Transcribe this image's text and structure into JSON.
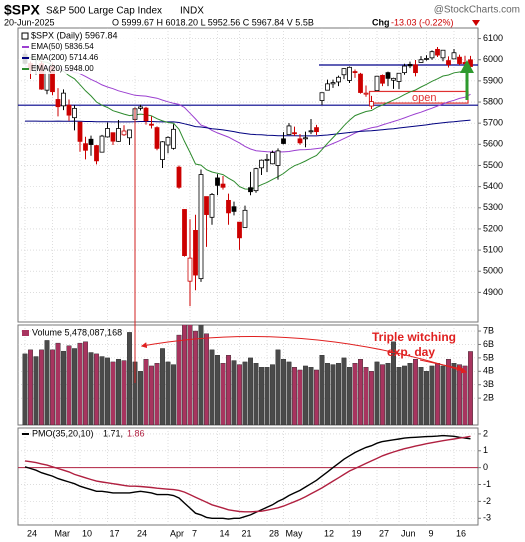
{
  "header": {
    "symbol": "$SPX",
    "name": "S&P 500 Large Cap Index",
    "exchange": "INDX",
    "credit": "@StockCharts.com",
    "date": "20-Jun-2025",
    "quote": "O 5999.67 H 6018.20 L 5952.56 C 5967.84 V 5.5B",
    "change_label": "Chg",
    "change": "-13.03 (-0.22%)"
  },
  "chart_data": [
    {
      "type": "candlestick",
      "legend": "$SPX (Daily) 5967.84",
      "colors": {
        "up": "#000000",
        "down": "#cc0000"
      },
      "categories": [
        "24",
        null,
        null,
        null,
        null,
        "Mar",
        null,
        null,
        null,
        null,
        "10",
        null,
        null,
        null,
        null,
        "17",
        null,
        null,
        null,
        null,
        "24",
        null,
        null,
        null,
        null,
        null,
        "Apr",
        null,
        null,
        null,
        "7",
        null,
        null,
        null,
        null,
        "14",
        null,
        null,
        null,
        "21",
        null,
        null,
        null,
        null,
        "28",
        null,
        null,
        "May",
        null,
        null,
        null,
        null,
        null,
        null,
        "12",
        null,
        null,
        null,
        null,
        "19",
        null,
        null,
        null,
        null,
        "27",
        null,
        null,
        null,
        "Jun",
        null,
        null,
        null,
        null,
        "9",
        null,
        null,
        null,
        null,
        "16",
        null,
        null,
        null
      ],
      "open": [
        6026,
        5982,
        5970,
        5981,
        5856,
        5969,
        5812,
        5782,
        5785,
        5726,
        5705,
        5603,
        5624,
        5594,
        5563,
        5635,
        5655,
        5614,
        5645,
        5631,
        5718,
        5770,
        5771,
        5695,
        5679,
        5528,
        5597,
        5581,
        5492,
        5292,
        4953,
        5193,
        4965,
        5353,
        5255,
        5441,
        5412,
        5335,
        5305,
        5232,
        5207,
        5395,
        5381,
        5489,
        5529,
        5508,
        5500,
        5626,
        5646,
        5655,
        5626,
        5626,
        5663,
        5679,
        5807,
        5856,
        5886,
        5895,
        5929,
        5902,
        5944,
        5932,
        5842,
        5781,
        5854,
        5926,
        5939,
        5903,
        5897,
        5939,
        5978,
        5976,
        5987,
        6005,
        6009,
        6049,
        6009,
        5996,
        6004,
        6012,
        5987,
        5999.67
      ],
      "high": [
        6044,
        5992,
        6009,
        5994,
        5959,
        5986,
        5866,
        5860,
        5812,
        5785,
        5705,
        5636,
        5641,
        5597,
        5645,
        5703,
        5656,
        5715,
        5690,
        5670,
        5775,
        5787,
        5777,
        5733,
        5685,
        5615,
        5638,
        5695,
        5500,
        5293,
        5246,
        5267,
        5481,
        5353,
        5370,
        5459,
        5450,
        5367,
        5329,
        5232,
        5310,
        5470,
        5489,
        5528,
        5554,
        5570,
        5581,
        5658,
        5700,
        5684,
        5649,
        5660,
        5720,
        5692,
        5845,
        5906,
        5906,
        5925,
        5959,
        5968,
        5954,
        5938,
        5878,
        5829,
        5924,
        5930,
        5944,
        5915,
        5937,
        5981,
        5991,
        5999,
        6017,
        6021,
        6044,
        6060,
        6046,
        6016,
        6051,
        6024,
        6019,
        6018.2
      ],
      "low": [
        5977,
        5909,
        5930,
        5858,
        5837,
        5832,
        5732,
        5762,
        5711,
        5666,
        5565,
        5529,
        5546,
        5505,
        5563,
        5632,
        5597,
        5612,
        5640,
        5597,
        5718,
        5760,
        5693,
        5675,
        5572,
        5488,
        5558,
        5575,
        5390,
        5069,
        4835,
        4910,
        4950,
        5115,
        5220,
        5360,
        5386,
        5220,
        5264,
        5101,
        5207,
        5359,
        5371,
        5455,
        5469,
        5506,
        5433,
        5600,
        5645,
        5640,
        5598,
        5586,
        5648,
        5644,
        5786,
        5855,
        5867,
        5875,
        5908,
        5890,
        5914,
        5840,
        5825,
        5767,
        5854,
        5875,
        5875,
        5862,
        5861,
        5929,
        5960,
        5921,
        5986,
        5996,
        6000,
        6013,
        5993,
        5963,
        6004,
        5975,
        5971,
        5952.56
      ],
      "close": [
        5983,
        5955,
        5956,
        5861,
        5955,
        5849,
        5778,
        5842,
        5738,
        5770,
        5614,
        5572,
        5599,
        5522,
        5639,
        5675,
        5615,
        5675,
        5663,
        5668,
        5768,
        5777,
        5712,
        5693,
        5581,
        5612,
        5633,
        5671,
        5397,
        5074,
        5062,
        4982,
        5457,
        5268,
        5363,
        5406,
        5397,
        5276,
        5283,
        5158,
        5288,
        5376,
        5485,
        5525,
        5529,
        5561,
        5569,
        5604,
        5687,
        5650,
        5607,
        5631,
        5664,
        5660,
        5844,
        5886,
        5892,
        5917,
        5958,
        5964,
        5941,
        5845,
        5842,
        5802,
        5922,
        5889,
        5912,
        5912,
        5936,
        5970,
        5971,
        5939,
        6000,
        6006,
        6038,
        6022,
        6045,
        5977,
        6033,
        5982,
        5981,
        5967.84
      ],
      "series": [
        {
          "name": "EMA(50) 5836.54",
          "color": "#9b3fd0",
          "values": [
            5970,
            5970,
            5969,
            5969,
            5965,
            5964,
            5960,
            5953,
            5948,
            5940,
            5934,
            5921,
            5907,
            5895,
            5881,
            5871,
            5863,
            5853,
            5846,
            5839,
            5832,
            5830,
            5828,
            5823,
            5818,
            5809,
            5801,
            5794,
            5789,
            5774,
            5747,
            5720,
            5691,
            5682,
            5666,
            5654,
            5644,
            5634,
            5620,
            5607,
            5590,
            5578,
            5570,
            5567,
            5565,
            5564,
            5564,
            5564,
            5566,
            5571,
            5574,
            5575,
            5577,
            5580,
            5583,
            5593,
            5604,
            5615,
            5627,
            5640,
            5653,
            5664,
            5671,
            5678,
            5683,
            5692,
            5700,
            5708,
            5716,
            5725,
            5735,
            5744,
            5752,
            5762,
            5771,
            5781,
            5791,
            5801,
            5808,
            5817,
            5823,
            5836.54
          ]
        },
        {
          "name": "EMA(200) 5714.46",
          "color": "#000080",
          "values": [
            5710,
            5710,
            5710,
            5709,
            5709,
            5709,
            5710,
            5709,
            5709,
            5710,
            5709,
            5708,
            5708,
            5707,
            5707,
            5707,
            5706,
            5706,
            5706,
            5706,
            5707,
            5708,
            5708,
            5708,
            5707,
            5706,
            5706,
            5706,
            5703,
            5697,
            5691,
            5684,
            5682,
            5678,
            5674,
            5671,
            5668,
            5664,
            5660,
            5655,
            5651,
            5648,
            5646,
            5645,
            5643,
            5642,
            5641,
            5641,
            5641,
            5641,
            5640,
            5640,
            5640,
            5640,
            5642,
            5644,
            5647,
            5650,
            5653,
            5656,
            5659,
            5661,
            5663,
            5664,
            5667,
            5669,
            5672,
            5674,
            5677,
            5680,
            5683,
            5686,
            5689,
            5692,
            5696,
            5699,
            5702,
            5705,
            5707,
            5710,
            5712,
            5714.46
          ]
        },
        {
          "name": "EMA(20) 5948.00",
          "color": "#2e8b2e",
          "values": [
            6016,
            6010,
            6005,
            5991,
            5988,
            5975,
            5956,
            5945,
            5925,
            5910,
            5882,
            5853,
            5829,
            5800,
            5785,
            5774,
            5759,
            5751,
            5743,
            5736,
            5739,
            5743,
            5740,
            5735,
            5721,
            5711,
            5703,
            5700,
            5671,
            5614,
            5562,
            5507,
            5502,
            5480,
            5469,
            5463,
            5457,
            5440,
            5425,
            5400,
            5389,
            5388,
            5397,
            5409,
            5420,
            5434,
            5447,
            5462,
            5483,
            5499,
            5509,
            5521,
            5535,
            5547,
            5575,
            5605,
            5632,
            5659,
            5688,
            5714,
            5736,
            5746,
            5755,
            5760,
            5775,
            5786,
            5798,
            5809,
            5821,
            5835,
            5848,
            5857,
            5871,
            5884,
            5898,
            5910,
            5923,
            5928,
            5938,
            5942,
            5946,
            5948
          ]
        }
      ],
      "levels": [
        {
          "value": 5785,
          "color": "#00008b"
        },
        {
          "value": 5975,
          "color": "#00008b"
        }
      ],
      "gap": {
        "low": 5795,
        "high": 5850,
        "label": "open",
        "color": "#e03030"
      },
      "ylim": [
        4760,
        6150
      ],
      "yticks": [
        6100,
        6000,
        5900,
        5800,
        5700,
        5600,
        5500,
        5400,
        5300,
        5200,
        5100,
        5000,
        4900
      ],
      "grid": true
    },
    {
      "type": "bar",
      "legend": "Volume 5,478,087,168",
      "colors": {
        "up": "#4a4a4a",
        "down": "#a8345f"
      },
      "values": [
        5.3,
        5.6,
        5.1,
        5.6,
        6.3,
        5.6,
        6.1,
        5.5,
        5.9,
        5.7,
        6.1,
        6.2,
        5.4,
        5.3,
        5.1,
        5.0,
        4.7,
        4.9,
        4.8,
        6.9,
        4.7,
        4.0,
        4.9,
        4.4,
        4.6,
        5.7,
        4.7,
        4.5,
        6.7,
        7.5,
        7.5,
        7.0,
        7.5,
        6.8,
        5.6,
        5.2,
        4.6,
        5.2,
        4.8,
        4.5,
        4.7,
        5.0,
        4.6,
        4.3,
        4.3,
        4.5,
        5.6,
        4.9,
        4.7,
        4.3,
        4.1,
        4.4,
        4.3,
        4.1,
        5.2,
        4.6,
        4.5,
        4.6,
        5.0,
        4.3,
        4.6,
        4.9,
        4.3,
        4.0,
        4.7,
        4.5,
        4.6,
        6.2,
        4.3,
        4.4,
        4.6,
        4.9,
        4.3,
        4.0,
        4.4,
        4.6,
        4.4,
        4.9,
        4.6,
        4.5,
        4.4,
        5.478087168
      ],
      "annotation": [
        "Triple witching",
        "exp. day"
      ],
      "ylim": [
        0,
        7.45
      ],
      "yticks": [
        {
          "value": 7,
          "label": "7B"
        },
        {
          "value": 6,
          "label": "6B"
        },
        {
          "value": 5,
          "label": "5B"
        },
        {
          "value": 4,
          "label": "4B"
        },
        {
          "value": 3,
          "label": "3B"
        },
        {
          "value": 2,
          "label": "2B"
        }
      ],
      "grid": true
    },
    {
      "type": "line",
      "legend": "PMO(35,20,10)",
      "series": [
        {
          "name": "1.71,",
          "color": "#000000",
          "values": [
            0.05,
            -0.05,
            -0.15,
            -0.3,
            -0.4,
            -0.5,
            -0.65,
            -0.75,
            -0.85,
            -0.95,
            -1.1,
            -1.2,
            -1.3,
            -1.4,
            -1.4,
            -1.45,
            -1.5,
            -1.5,
            -1.5,
            -1.5,
            -1.45,
            -1.4,
            -1.45,
            -1.5,
            -1.6,
            -1.6,
            -1.6,
            -1.65,
            -1.8,
            -2.1,
            -2.4,
            -2.7,
            -2.8,
            -2.95,
            -3.0,
            -3.0,
            -3.0,
            -3.05,
            -3.0,
            -3.0,
            -2.9,
            -2.8,
            -2.65,
            -2.5,
            -2.35,
            -2.2,
            -2.0,
            -1.85,
            -1.65,
            -1.5,
            -1.35,
            -1.15,
            -0.95,
            -0.75,
            -0.5,
            -0.25,
            0.0,
            0.25,
            0.5,
            0.7,
            0.9,
            1.05,
            1.2,
            1.3,
            1.45,
            1.55,
            1.6,
            1.65,
            1.7,
            1.75,
            1.78,
            1.8,
            1.82,
            1.84,
            1.85,
            1.87,
            1.9,
            1.88,
            1.86,
            1.8,
            1.76,
            1.71
          ]
        },
        {
          "name": "1.86",
          "color": "#b02040",
          "values": [
            0.4,
            0.35,
            0.3,
            0.22,
            0.15,
            0.05,
            -0.05,
            -0.15,
            -0.25,
            -0.4,
            -0.5,
            -0.6,
            -0.7,
            -0.8,
            -0.85,
            -0.9,
            -0.95,
            -1.0,
            -1.05,
            -1.1,
            -1.1,
            -1.12,
            -1.15,
            -1.18,
            -1.22,
            -1.25,
            -1.28,
            -1.3,
            -1.35,
            -1.45,
            -1.6,
            -1.75,
            -1.9,
            -2.05,
            -2.2,
            -2.3,
            -2.4,
            -2.5,
            -2.55,
            -2.6,
            -2.62,
            -2.62,
            -2.6,
            -2.58,
            -2.52,
            -2.45,
            -2.38,
            -2.28,
            -2.15,
            -2.02,
            -1.88,
            -1.72,
            -1.55,
            -1.38,
            -1.2,
            -1.0,
            -0.8,
            -0.6,
            -0.4,
            -0.2,
            -0.05,
            0.1,
            0.25,
            0.4,
            0.55,
            0.7,
            0.82,
            0.93,
            1.03,
            1.12,
            1.2,
            1.28,
            1.35,
            1.42,
            1.48,
            1.54,
            1.6,
            1.65,
            1.7,
            1.75,
            1.8,
            1.86
          ]
        }
      ],
      "reference_line": {
        "value": 0,
        "color": "#b02040"
      },
      "ylim": [
        -3.4,
        2.35
      ],
      "yticks": [
        2,
        1,
        0,
        -1,
        -2,
        -3
      ],
      "grid": true
    }
  ]
}
